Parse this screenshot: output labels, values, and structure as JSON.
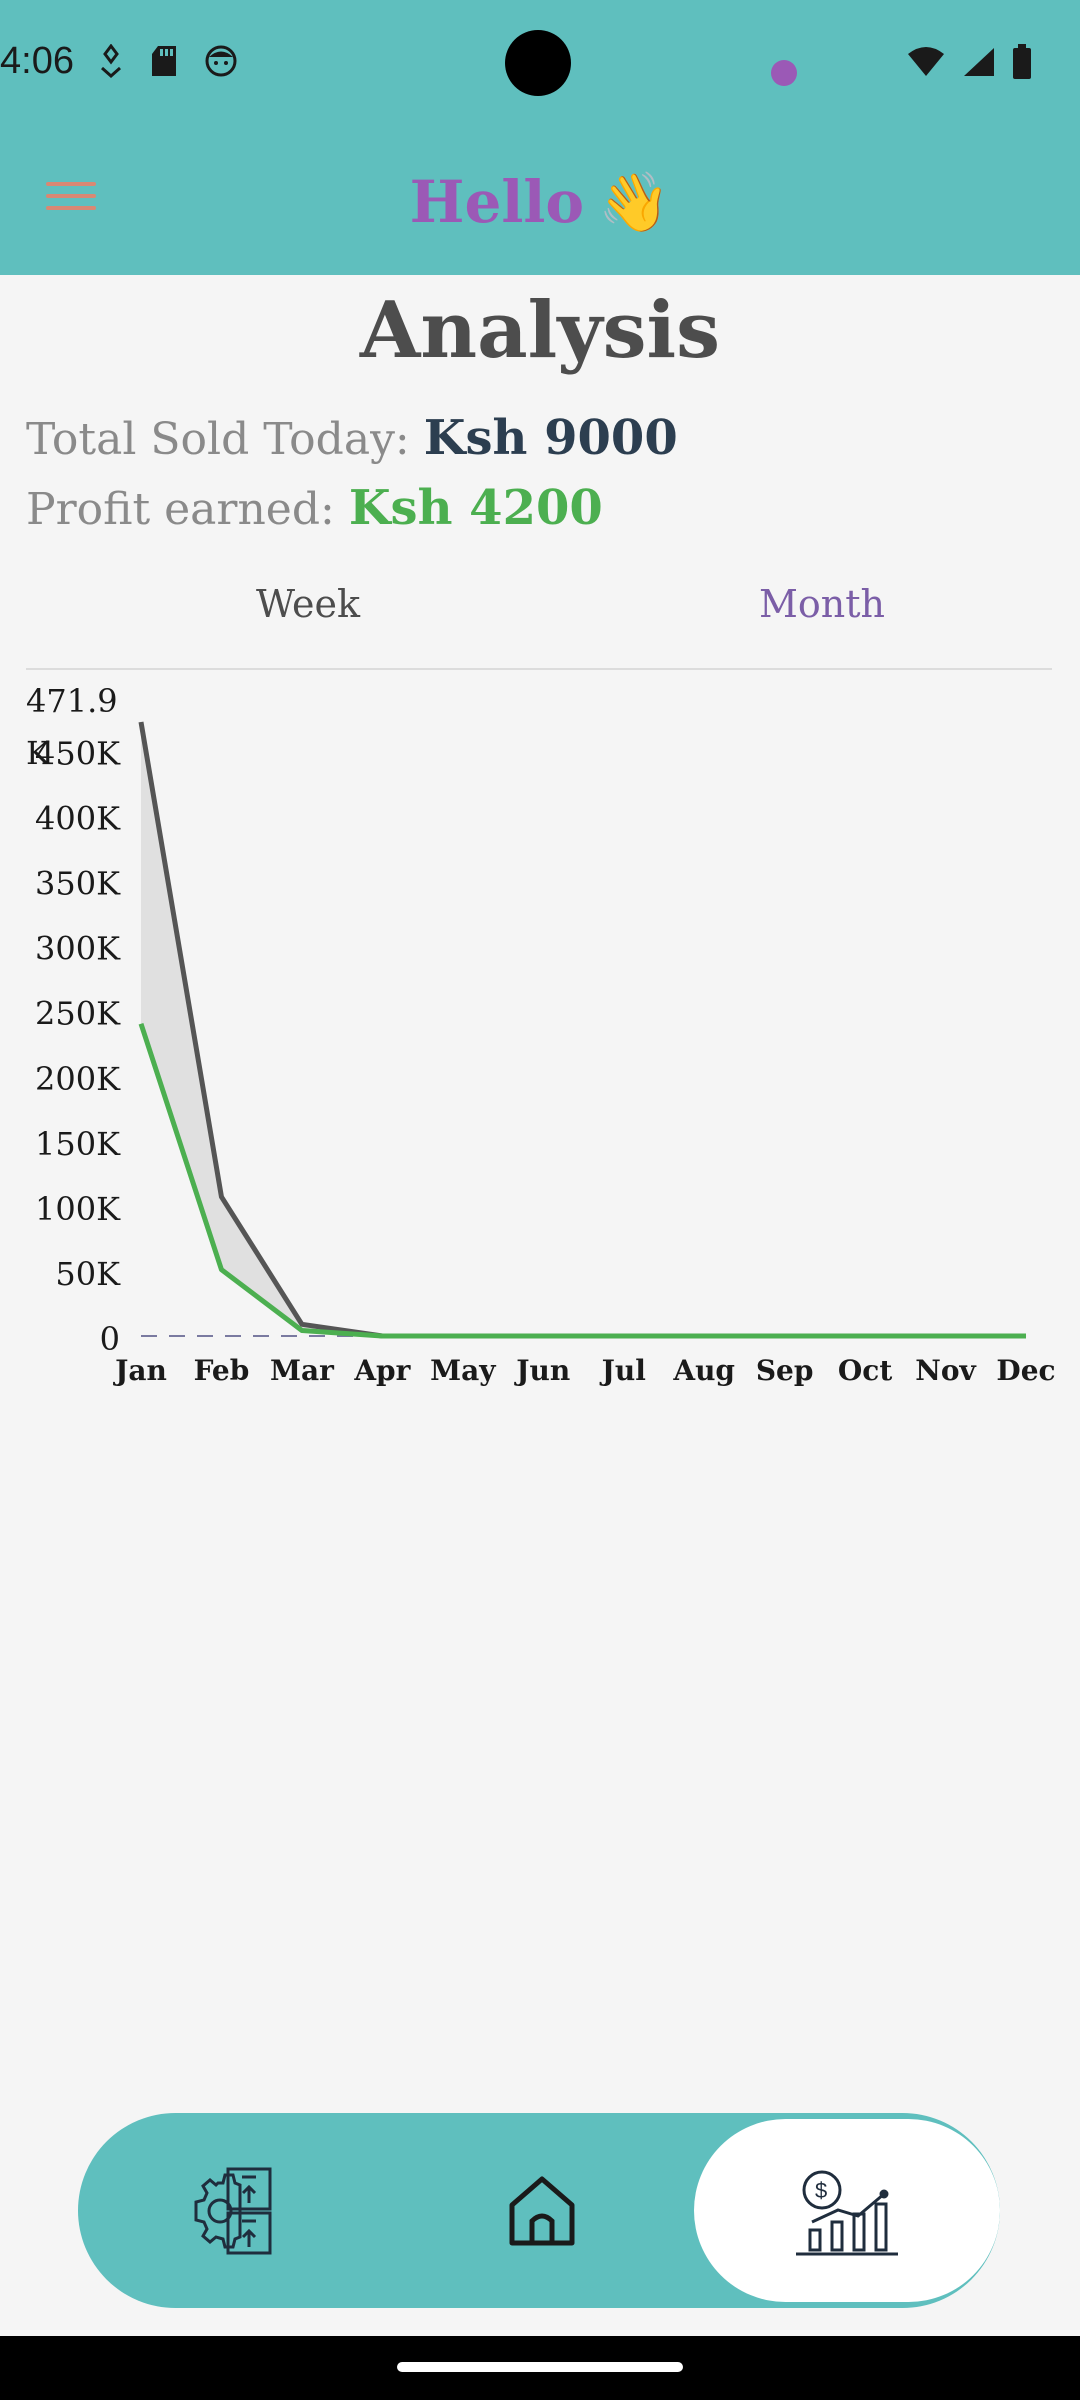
{
  "status": {
    "time": "4:06",
    "left_icons": [
      "usb-debug-icon",
      "sd-card-icon",
      "face-icon"
    ],
    "right_icons": [
      "wifi-icon",
      "signal-icon",
      "battery-icon"
    ]
  },
  "header": {
    "greeting": "Hello",
    "greeting_emoji": "👋",
    "menu_icon": "hamburger-menu-icon"
  },
  "page": {
    "title": "Analysis",
    "total_sold_label": "Total Sold Today:",
    "total_sold_value": "Ksh 9000",
    "profit_label": "Profit earned:",
    "profit_value": "Ksh 4200"
  },
  "tabs": {
    "week": "Week",
    "month": "Month",
    "active": "month"
  },
  "colors": {
    "primary": "#5fbfbe",
    "accent": "#9b59b6",
    "sales_line": "#555555",
    "profit_line": "#4caf50"
  },
  "chart_data": {
    "type": "area",
    "x": [
      "Jan",
      "Feb",
      "Mar",
      "Apr",
      "May",
      "Jun",
      "Jul",
      "Aug",
      "Sep",
      "Oct",
      "Nov",
      "Dec"
    ],
    "series": [
      {
        "values": [
          471900,
          107000,
          9000,
          0,
          0,
          0,
          0,
          0,
          0,
          0,
          0,
          0
        ]
      },
      {
        "values": [
          240000,
          51000,
          4200,
          0,
          0,
          0,
          0,
          0,
          0,
          0,
          0,
          0
        ]
      }
    ],
    "y_ticks": [
      "0",
      "50K",
      "100K",
      "150K",
      "200K",
      "250K",
      "300K",
      "350K",
      "400K",
      "450K"
    ],
    "y_max_label": "471.9\nK",
    "ylim": [
      0,
      471900
    ],
    "grid": false
  },
  "nav": {
    "items": [
      {
        "name": "inventory",
        "icon": "inventory-settings-icon"
      },
      {
        "name": "home",
        "icon": "home-icon"
      },
      {
        "name": "analysis",
        "icon": "analytics-chart-icon"
      }
    ],
    "active": "analysis"
  }
}
